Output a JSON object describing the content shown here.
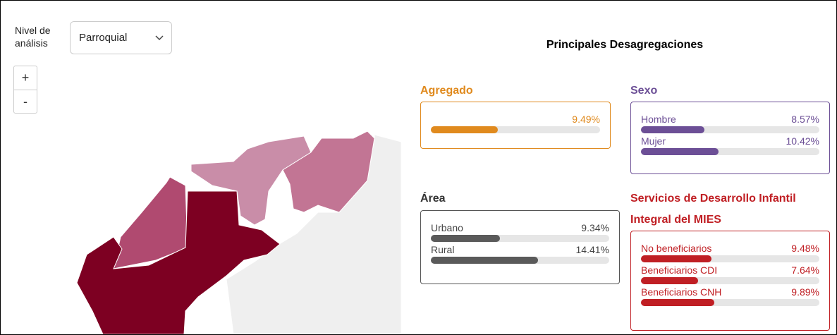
{
  "controls": {
    "level_label": "Nivel de análisis",
    "level_selected": "Parroquial",
    "zoom_in": "+",
    "zoom_out": "-"
  },
  "title": "Principales Desagregaciones",
  "xlim": [
    0,
    24
  ],
  "panels": [
    {
      "name": "Agregado",
      "color": "#e08a1e",
      "bar_color": "#e08a1e",
      "border_color": "#e08a1e",
      "items": [
        {
          "label": null,
          "value": 9.49,
          "value_label": "9.49%"
        }
      ]
    },
    {
      "name": "Sexo",
      "color": "#6c4f96",
      "bar_color": "#6c4f96",
      "border_color": "#6c4f96",
      "items": [
        {
          "label": "Hombre",
          "value": 8.57,
          "value_label": "8.57%"
        },
        {
          "label": "Mujer",
          "value": 10.42,
          "value_label": "10.42%"
        }
      ]
    },
    {
      "name": "Área",
      "color": "#333333",
      "bar_color": "#5a5a5a",
      "border_color": "#555555",
      "items": [
        {
          "label": "Urbano",
          "value": 9.34,
          "value_label": "9.34%"
        },
        {
          "label": "Rural",
          "value": 14.41,
          "value_label": "14.41%"
        }
      ]
    },
    {
      "name": "Servicios de Desarrollo Infantil Integral del MIES",
      "color": "#c01f24",
      "bar_color": "#c01f24",
      "border_color": "#c01f24",
      "items": [
        {
          "label": "No beneficiarios",
          "value": 9.48,
          "value_label": "9.48%"
        },
        {
          "label": "Beneficiarios CDI",
          "value": 7.64,
          "value_label": "7.64%"
        },
        {
          "label": "Beneficiarios CNH",
          "value": 9.89,
          "value_label": "9.89%"
        }
      ]
    }
  ]
}
